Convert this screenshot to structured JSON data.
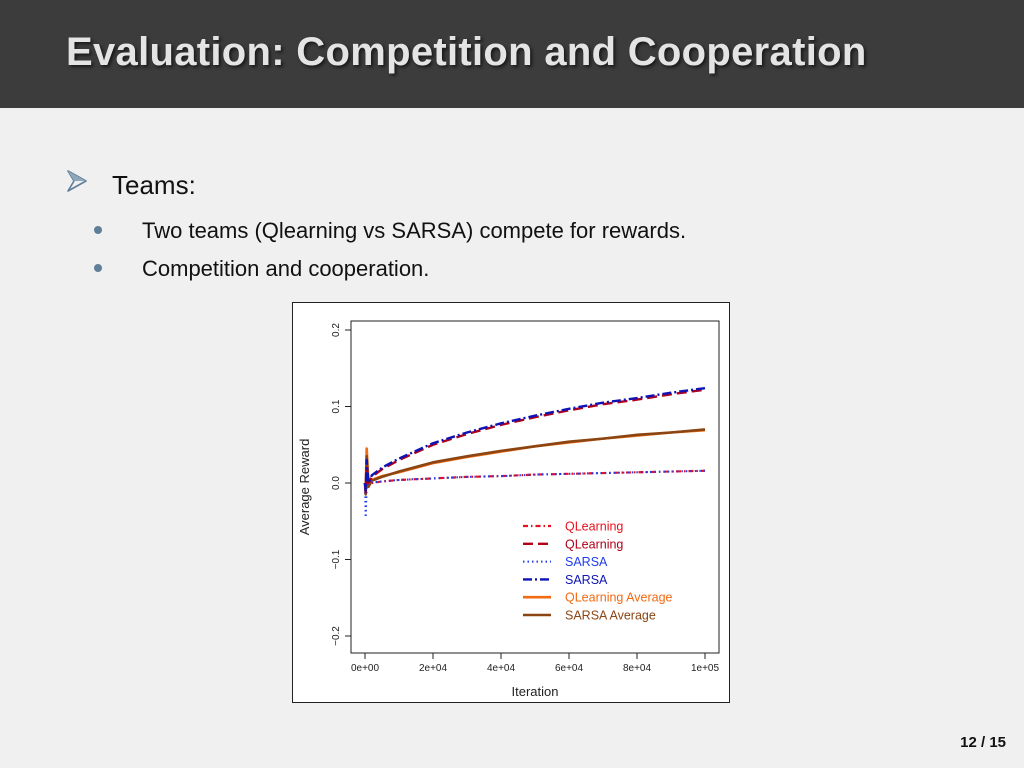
{
  "slide": {
    "title": "Evaluation: Competition and Cooperation",
    "bullet_main": "Teams:",
    "sub_bullets": [
      "Two teams (Qlearning vs SARSA) compete for rewards.",
      "Competition and cooperation."
    ],
    "page": {
      "current": "12",
      "separator": "/",
      "total": "15"
    }
  },
  "colors": {
    "header_bg": "#3c3c3c",
    "title_text": "#e4e4e4",
    "arrow_bullet": "#5f7f99",
    "qlearning_red": "#e8101e",
    "qlearning_darkred": "#b0001a",
    "sarsa_blue": "#1f3cf0",
    "sarsa_darkblue": "#0d13b5",
    "qlearning_avg": "#f26a12",
    "sarsa_avg": "#8b4513"
  },
  "chart_data": {
    "type": "line",
    "xlabel": "Iteration",
    "ylabel": "Average Reward",
    "xlim": [
      0,
      100000
    ],
    "ylim": [
      -0.2,
      0.2
    ],
    "x_ticks": [
      0,
      20000,
      40000,
      60000,
      80000,
      100000
    ],
    "x_tick_labels": [
      "0e+00",
      "2e+04",
      "4e+04",
      "6e+04",
      "8e+04",
      "1e+05"
    ],
    "y_ticks": [
      -0.2,
      -0.1,
      0.0,
      0.1,
      0.2
    ],
    "y_tick_labels": [
      "−0.2",
      "−0.1",
      "0.0",
      "0.1",
      "0.2"
    ],
    "grid": false,
    "legend_position": "bottom-right",
    "series": [
      {
        "name": "QLearning",
        "color": "#e8101e",
        "style": "dotted-dash",
        "x": [
          0,
          200,
          500,
          1000,
          2000,
          5000,
          10000,
          20000,
          30000,
          40000,
          50000,
          60000,
          70000,
          80000,
          90000,
          100000
        ],
        "y": [
          0.0,
          -0.01,
          0.0,
          0.0,
          0.0,
          0.002,
          0.004,
          0.006,
          0.008,
          0.009,
          0.011,
          0.012,
          0.013,
          0.014,
          0.015,
          0.016
        ]
      },
      {
        "name": "QLearning",
        "color": "#b0001a",
        "style": "longdash",
        "x": [
          0,
          200,
          500,
          1000,
          2000,
          5000,
          10000,
          20000,
          30000,
          40000,
          50000,
          60000,
          70000,
          80000,
          90000,
          100000
        ],
        "y": [
          0.0,
          -0.012,
          0.02,
          0.0,
          0.008,
          0.018,
          0.03,
          0.05,
          0.064,
          0.076,
          0.086,
          0.095,
          0.103,
          0.109,
          0.116,
          0.122
        ]
      },
      {
        "name": "SARSA",
        "color": "#1f3cf0",
        "style": "dotted",
        "x": [
          0,
          200,
          500,
          1000,
          2000,
          5000,
          10000,
          20000,
          30000,
          40000,
          50000,
          60000,
          70000,
          80000,
          90000,
          100000
        ],
        "y": [
          0.0,
          -0.045,
          -0.005,
          0.0,
          0.001,
          0.002,
          0.004,
          0.006,
          0.008,
          0.009,
          0.011,
          0.012,
          0.013,
          0.014,
          0.015,
          0.016
        ]
      },
      {
        "name": "SARSA",
        "color": "#0d13b5",
        "style": "dashdot",
        "x": [
          0,
          200,
          500,
          1000,
          2000,
          5000,
          10000,
          20000,
          30000,
          40000,
          50000,
          60000,
          70000,
          80000,
          90000,
          100000
        ],
        "y": [
          0.0,
          -0.01,
          0.03,
          0.0,
          0.01,
          0.02,
          0.032,
          0.052,
          0.066,
          0.078,
          0.088,
          0.097,
          0.105,
          0.111,
          0.118,
          0.124
        ]
      },
      {
        "name": "QLearning Average",
        "color": "#f26a12",
        "style": "solid",
        "x": [
          0,
          200,
          500,
          1000,
          2000,
          5000,
          10000,
          20000,
          30000,
          40000,
          50000,
          60000,
          70000,
          80000,
          90000,
          100000
        ],
        "y": [
          0.0,
          -0.01,
          0.045,
          0.0,
          0.004,
          0.009,
          0.014,
          0.026,
          0.034,
          0.041,
          0.048,
          0.053,
          0.058,
          0.062,
          0.066,
          0.069
        ]
      },
      {
        "name": "SARSA Average",
        "color": "#8b4513",
        "style": "solid",
        "x": [
          0,
          200,
          500,
          1000,
          2000,
          5000,
          10000,
          20000,
          30000,
          40000,
          50000,
          60000,
          70000,
          80000,
          90000,
          100000
        ],
        "y": [
          0.0,
          -0.015,
          0.035,
          -0.005,
          0.003,
          0.008,
          0.015,
          0.027,
          0.035,
          0.042,
          0.048,
          0.054,
          0.058,
          0.063,
          0.066,
          0.07
        ]
      }
    ]
  }
}
